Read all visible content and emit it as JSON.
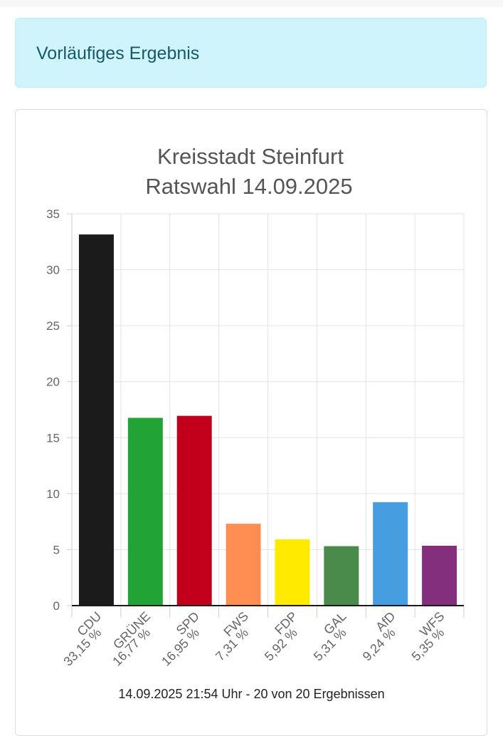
{
  "notice": {
    "text": "Vorläufiges Ergebnis"
  },
  "chart_data": {
    "type": "bar",
    "title": [
      "Kreisstadt Steinfurt",
      "Ratswahl 14.09.2025"
    ],
    "xlabel": "",
    "ylabel": "",
    "ylim": [
      0,
      35
    ],
    "yticks": [
      "0",
      "5",
      "10",
      "15",
      "20",
      "25",
      "30",
      "35"
    ],
    "grid": true,
    "legend": "none",
    "categories": [
      "CDU",
      "GRÜNE",
      "SPD",
      "FWS",
      "FDP",
      "GAL",
      "AfD",
      "WFS"
    ],
    "value_labels": [
      "33,15 %",
      "16,77 %",
      "16,95 %",
      "7,31 %",
      "5,92 %",
      "5,31 %",
      "9,24 %",
      "5,35 %"
    ],
    "values": [
      33.15,
      16.77,
      16.95,
      7.31,
      5.92,
      5.31,
      9.24,
      5.35
    ],
    "colors": [
      "#1b1b1b",
      "#22a336",
      "#c0001b",
      "#ff8c50",
      "#ffea00",
      "#4a8a4a",
      "#469ddf",
      "#842f7d"
    ]
  },
  "footer": {
    "text": "14.09.2025 21:54 Uhr - 20 von 20 Ergebnissen"
  }
}
